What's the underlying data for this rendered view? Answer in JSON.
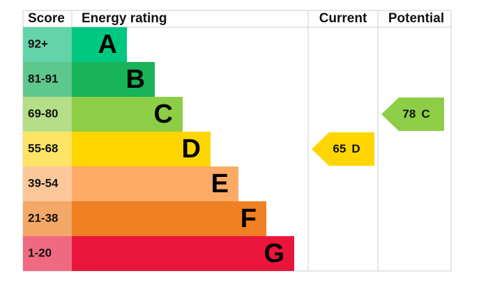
{
  "headers": {
    "score": "Score",
    "rating": "Energy rating",
    "current": "Current",
    "potential": "Potential"
  },
  "bands": [
    {
      "score": "92+",
      "letter": "A",
      "color": "#00c781",
      "light": "#63d3a9"
    },
    {
      "score": "81-91",
      "letter": "B",
      "color": "#19b459",
      "light": "#5ec78c"
    },
    {
      "score": "69-80",
      "letter": "C",
      "color": "#8dce46",
      "light": "#b5de89"
    },
    {
      "score": "55-68",
      "letter": "D",
      "color": "#ffd500",
      "light": "#fde466"
    },
    {
      "score": "39-54",
      "letter": "E",
      "color": "#fcaa65",
      "light": "#fcc89a"
    },
    {
      "score": "21-38",
      "letter": "F",
      "color": "#ef8023",
      "light": "#f4a867"
    },
    {
      "score": "1-20",
      "letter": "G",
      "color": "#e9153b",
      "light": "#ef6a80"
    }
  ],
  "current": {
    "value": 65,
    "letter": "D"
  },
  "potential": {
    "value": 78,
    "letter": "C"
  }
}
